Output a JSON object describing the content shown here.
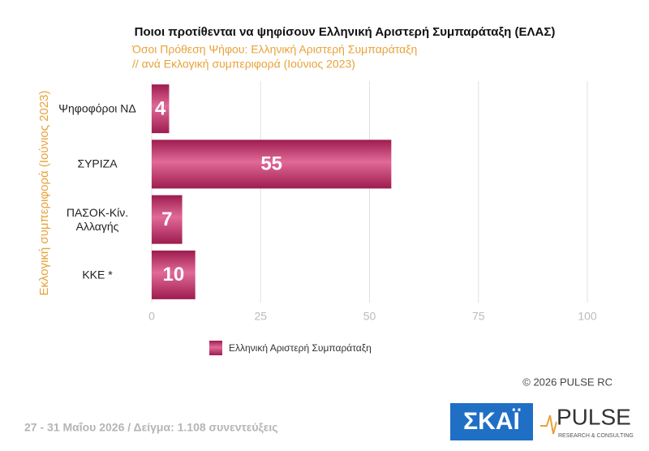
{
  "chart_data": {
    "type": "bar",
    "orientation": "horizontal",
    "title": "Ποιοι προτίθενται να ψηφίσουν Ελληνική Αριστερή Συμπαράταξη (ΕΛΑΣ)",
    "subtitle": [
      "Όσοι Πρόθεση Ψήφου: Ελληνική Αριστερή Συμπαράταξη",
      "// ανά Εκλογική  συμπεριφορά (Ιούνιος 2023)"
    ],
    "y_label": "Εκλογική  συμπεριφορά (Ιούνιος 2023)",
    "categories": [
      "Ψηφοφόροι ΝΔ",
      "ΣΥΡΙΖΑ",
      "ΠΑΣΟΚ-Κίν. Αλλαγής",
      "ΚΚΕ *"
    ],
    "series": [
      {
        "name": "Ελληνική Αριστερή Συμπαράταξη",
        "color": "#c2306b",
        "values": [
          4,
          55,
          7,
          10
        ]
      }
    ],
    "xlim": [
      0,
      100
    ],
    "xticks": [
      0,
      25,
      50,
      75,
      100
    ],
    "grid": true,
    "legend": "bottom-left",
    "copyright": "©  2026  PULSE RC",
    "footer": "27 - 31  Μαΐου 2026  /  Δείγμα:  1.108 συνεντεύξεις",
    "logos": {
      "skai": "ΣΚΑΪ",
      "pulse": "PULSE",
      "pulse_sub": "RESEARCH & CONSULTING"
    }
  }
}
